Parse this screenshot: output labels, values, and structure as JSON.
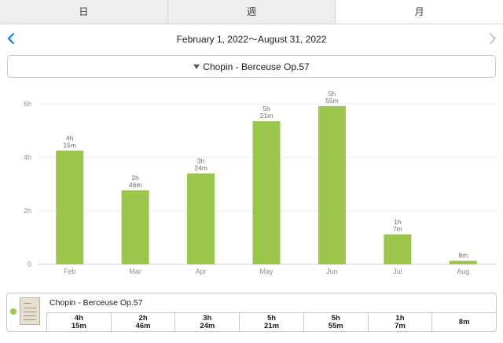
{
  "tabs": [
    {
      "label": "日",
      "active": false
    },
    {
      "label": "週",
      "active": false
    },
    {
      "label": "月",
      "active": true
    }
  ],
  "date_range": "February 1, 2022～August 31, 2022",
  "selector": {
    "label": "Chopin - Berceuse Op.57"
  },
  "colors": {
    "accent": "#007aff",
    "bar": "#9bc54b",
    "nav_disabled": "#c7c7cc"
  },
  "chart_data": {
    "type": "bar",
    "categories": [
      "Feb",
      "Mar",
      "Apr",
      "May",
      "Jun",
      "Jul",
      "Aug"
    ],
    "values_minutes": [
      255,
      166,
      204,
      321,
      355,
      67,
      8
    ],
    "data_labels": [
      [
        "4h",
        "15m"
      ],
      [
        "2h",
        "46m"
      ],
      [
        "3h",
        "24m"
      ],
      [
        "5h",
        "21m"
      ],
      [
        "5h",
        "55m"
      ],
      [
        "1h",
        "7m"
      ],
      [
        "",
        "8m"
      ]
    ],
    "y_ticks": [
      "0",
      "2h",
      "4h",
      "6h"
    ],
    "ylim_minutes": [
      0,
      360
    ],
    "grid": true,
    "series": [
      {
        "name": "Chopin - Berceuse Op.57",
        "values": [
          255,
          166,
          204,
          321,
          355,
          67,
          8
        ]
      }
    ]
  },
  "summary": {
    "title": "Chopin - Berceuse Op.57",
    "cells": [
      [
        "4h",
        "15m"
      ],
      [
        "2h",
        "46m"
      ],
      [
        "3h",
        "24m"
      ],
      [
        "5h",
        "21m"
      ],
      [
        "5h",
        "55m"
      ],
      [
        "1h",
        "7m"
      ],
      [
        "8m",
        ""
      ]
    ]
  }
}
